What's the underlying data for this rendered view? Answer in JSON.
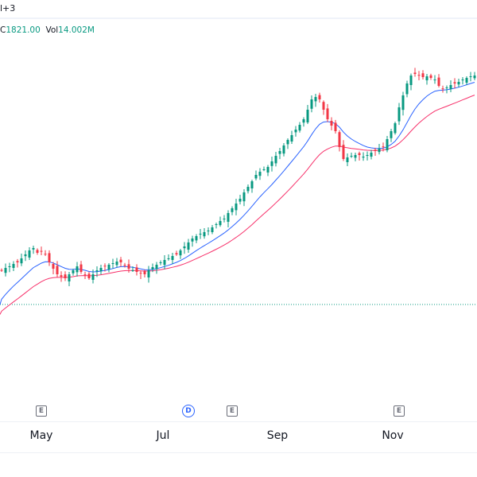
{
  "header": {
    "symbol_fragment": "l+3"
  },
  "legend": {
    "close_label": "C",
    "close_value": "1821.00",
    "vol_label": "Vol",
    "vol_value": "14.002M"
  },
  "colors": {
    "up": "#089981",
    "down": "#f23645",
    "ma_fast": "#2962ff",
    "ma_slow": "#f7306a",
    "ref_line": "#089981"
  },
  "chart_data": {
    "type": "candlestick",
    "x_tick_labels": [
      "May",
      "Jul",
      "Sep",
      "Nov"
    ],
    "events": [
      {
        "label": "E",
        "kind": "earnings",
        "index": 10
      },
      {
        "label": "D",
        "kind": "dividend",
        "index": 47
      },
      {
        "label": "E",
        "kind": "earnings",
        "index": 58
      },
      {
        "label": "E",
        "kind": "earnings",
        "index": 100
      }
    ],
    "reference_price": 1245,
    "y_range": [
      811,
      2011
    ],
    "ma_fast": {
      "period": 12,
      "seed": 1245
    },
    "ma_slow": {
      "period": 26,
      "seed": 1220
    },
    "closes": [
      1331,
      1337,
      1341,
      1347,
      1351,
      1361,
      1371,
      1381,
      1387,
      1375,
      1379,
      1371,
      1351,
      1335,
      1321,
      1315,
      1311,
      1321,
      1331,
      1341,
      1327,
      1319,
      1311,
      1321,
      1331,
      1337,
      1341,
      1345,
      1349,
      1353,
      1351,
      1343,
      1335,
      1331,
      1327,
      1323,
      1321,
      1331,
      1339,
      1345,
      1351,
      1357,
      1361,
      1367,
      1371,
      1381,
      1391,
      1401,
      1411,
      1417,
      1423,
      1427,
      1431,
      1439,
      1447,
      1455,
      1461,
      1475,
      1487,
      1499,
      1511,
      1527,
      1541,
      1555,
      1571,
      1579,
      1585,
      1591,
      1605,
      1619,
      1631,
      1645,
      1659,
      1671,
      1685,
      1697,
      1711,
      1735,
      1761,
      1767,
      1761,
      1735,
      1711,
      1695,
      1681,
      1641,
      1611,
      1615,
      1619,
      1621,
      1621,
      1617,
      1621,
      1627,
      1631,
      1637,
      1641,
      1661,
      1681,
      1701,
      1741,
      1771,
      1801,
      1821,
      1825,
      1821,
      1817,
      1819,
      1815,
      1811,
      1795,
      1787,
      1791,
      1797,
      1801,
      1805,
      1811,
      1815,
      1819,
      1821
    ]
  }
}
